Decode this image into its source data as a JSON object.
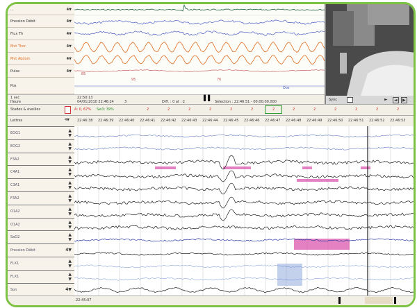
{
  "top_channels": [
    {
      "label": "...",
      "control": "4▼",
      "color": "#333333"
    },
    {
      "label": "Pression Débit",
      "control": "4▼",
      "color": "#333333"
    },
    {
      "label": "Flux Th",
      "control": "4▼",
      "color": "#333333"
    },
    {
      "label": "Mvt Thor",
      "control": "4▼",
      "color": "#e06a20"
    },
    {
      "label": "Mvt Abdom",
      "control": "4▼",
      "color": "#e06a20"
    },
    {
      "label": "Pulse",
      "control": "4▼",
      "color": "#333333"
    },
    {
      "label": "Pos",
      "control": "",
      "color": "#333333"
    }
  ],
  "top_info": {
    "left_label": "1 sec",
    "date_label": "Heure",
    "time_small": "22:50:13",
    "datetime": "04/01/2010 22:46:24",
    "num": "3",
    "diff": "Diff. : 0 at : 2",
    "selection": "Sélection : 22:46:51 - 00:00:00.000",
    "markers_top": [
      "85",
      "95",
      "76",
      "Dos"
    ]
  },
  "video": {
    "label": "Sync",
    "controls": [
      "►",
      "◄",
      "▶"
    ]
  },
  "toolbar": {
    "left_label": "Stades & éveilles",
    "stats": "A: 0, 67%",
    "stats2": "Sw3: 39%",
    "stages": [
      "2",
      "2",
      "2",
      "2",
      "2",
      "2",
      "2",
      "2",
      "2",
      "2",
      "2",
      "2",
      "2"
    ]
  },
  "time_header": {
    "label": "Lettres",
    "times": [
      "22:46:38",
      "22:46:39",
      "22:46:40",
      "22:46:41",
      "22:46:42",
      "22:46:43",
      "22:46:44",
      "22:46:45",
      "22:46:46",
      "22:46:47",
      "22:46:48",
      "22:46:49",
      "22:46:50",
      "22:46:51",
      "22:46:52",
      "22:46:53"
    ]
  },
  "bottom_channels": [
    {
      "label": "EOG1"
    },
    {
      "label": "EOG2"
    },
    {
      "label": "F3A2"
    },
    {
      "label": "C4A1"
    },
    {
      "label": "C3A1"
    },
    {
      "label": "F3A2"
    },
    {
      "label": "O1A2"
    },
    {
      "label": "O1A2"
    },
    {
      "label": "SaO2"
    },
    {
      "label": "Pression Débit"
    },
    {
      "label": "FLX1"
    },
    {
      "label": "FLX1"
    },
    {
      "label": "Son"
    }
  ],
  "bottom_bar": {
    "time": "22:45:07"
  },
  "colors": {
    "frame": "#7dc242",
    "label_bg": "#f7f3ea",
    "trace_dark": "#1a1a1a",
    "trace_blue": "#4a5cc4",
    "trace_orange": "#e26a1a",
    "highlight_pink": "#d94ca8",
    "highlight_blue": "#7a9ad8"
  }
}
